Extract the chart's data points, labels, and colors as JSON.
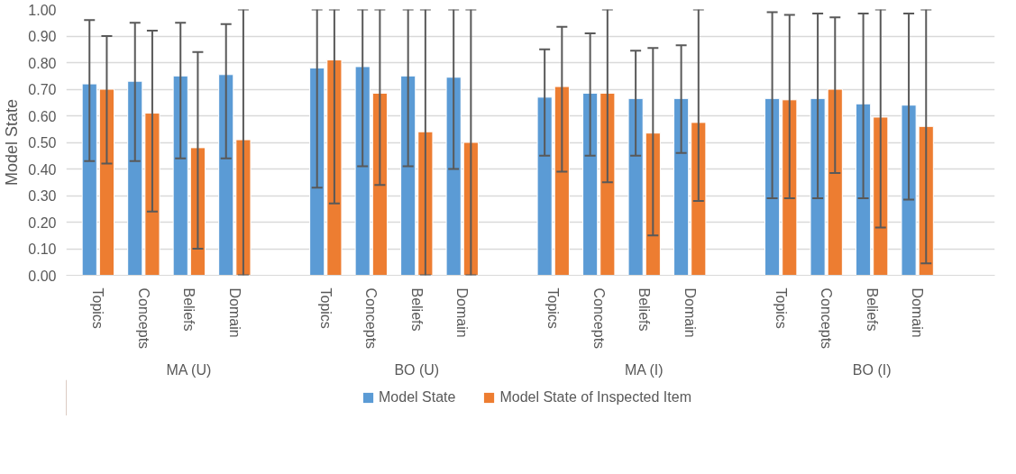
{
  "chart_data": {
    "type": "bar",
    "ylabel": "Model State",
    "categories": [
      "Topics",
      "Concepts",
      "Beliefs",
      "Domain",
      null,
      "Topics",
      "Concepts",
      "Beliefs",
      "Domain",
      null,
      "Topics",
      "Concepts",
      "Beliefs",
      "Domain",
      null,
      "Topics",
      "Concepts",
      "Beliefs",
      "Domain",
      null
    ],
    "annotations": [
      "MA (U)",
      "BO (U)",
      "MA (I)",
      "BO (I)"
    ],
    "series": [
      {
        "name": "Model State",
        "color": "#5b9bd5",
        "values": [
          0.72,
          0.73,
          0.75,
          0.755,
          null,
          0.78,
          0.785,
          0.75,
          0.745,
          null,
          0.67,
          0.685,
          0.665,
          0.665,
          null,
          0.665,
          0.665,
          0.645,
          0.64,
          null
        ],
        "errors": [
          [
            0.43,
            0.96
          ],
          [
            0.43,
            0.95
          ],
          [
            0.44,
            0.95
          ],
          [
            0.44,
            0.945
          ],
          null,
          [
            0.33,
            1.0
          ],
          [
            0.41,
            1.0
          ],
          [
            0.41,
            1.0
          ],
          [
            0.4,
            1.0
          ],
          null,
          [
            0.45,
            0.85
          ],
          [
            0.45,
            0.91
          ],
          [
            0.45,
            0.845
          ],
          [
            0.46,
            0.865
          ],
          null,
          [
            0.29,
            0.99
          ],
          [
            0.29,
            0.985
          ],
          [
            0.29,
            0.985
          ],
          [
            0.285,
            0.985
          ],
          null
        ]
      },
      {
        "name": "Model State of Inspected Item",
        "color": "#ed7d31",
        "values": [
          0.7,
          0.61,
          0.48,
          0.51,
          null,
          0.81,
          0.685,
          0.54,
          0.5,
          null,
          0.71,
          0.685,
          0.535,
          0.575,
          null,
          0.66,
          0.7,
          0.595,
          0.56,
          null
        ],
        "errors": [
          [
            0.42,
            0.9
          ],
          [
            0.24,
            0.92
          ],
          [
            0.1,
            0.84
          ],
          [
            0.0,
            1.0
          ],
          null,
          [
            0.27,
            1.0
          ],
          [
            0.34,
            1.0
          ],
          [
            0.0,
            1.0
          ],
          [
            0.0,
            1.0
          ],
          null,
          [
            0.39,
            0.935
          ],
          [
            0.35,
            1.0
          ],
          [
            0.15,
            0.855
          ],
          [
            0.28,
            1.0
          ],
          null,
          [
            0.29,
            0.98
          ],
          [
            0.385,
            0.97
          ],
          [
            0.18,
            1.0
          ],
          [
            0.045,
            1.0
          ],
          null
        ]
      }
    ],
    "ylim": [
      0,
      1
    ],
    "yticks": [
      {
        "value": 0,
        "label": "0.00"
      },
      {
        "value": 0.1,
        "label": "0.10"
      },
      {
        "value": 0.2,
        "label": "0.20"
      },
      {
        "value": 0.3,
        "label": "0.30"
      },
      {
        "value": 0.4,
        "label": "0.40"
      },
      {
        "value": 0.5,
        "label": "0.50"
      },
      {
        "value": 0.6,
        "label": "0.60"
      },
      {
        "value": 0.7,
        "label": "0.70"
      },
      {
        "value": 0.8,
        "label": "0.80"
      },
      {
        "value": 0.9,
        "label": "0.90"
      },
      {
        "value": 1,
        "label": "1.00"
      }
    ],
    "grid": "y",
    "legend": "bottom"
  }
}
